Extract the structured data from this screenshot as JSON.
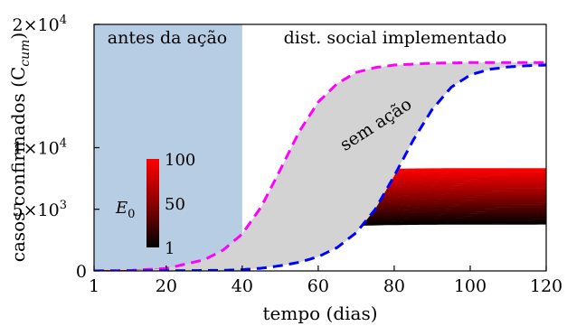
{
  "chart_data": {
    "type": "line",
    "xlabel": "tempo (dias)",
    "ylabel": "casos confirmados (C",
    "ylabel_sub": "cum",
    "ylabel_close": ")",
    "xlim": [
      1,
      120
    ],
    "ylim": [
      0,
      20000
    ],
    "x_ticks": [
      1,
      20,
      40,
      60,
      80,
      100,
      120
    ],
    "x_tick_labels": [
      "1",
      "20",
      "40",
      "60",
      "80",
      "100",
      "120"
    ],
    "x_highlight_tick": "40",
    "x_highlight_color": "#1f5fa8",
    "y_ticks": [
      0,
      5000,
      10000,
      20000
    ],
    "y_tick_labels": [
      {
        "base": "0",
        "exp": ""
      },
      {
        "base": "5×10",
        "exp": "3"
      },
      {
        "base": "1×10",
        "exp": "4"
      },
      {
        "base": "2×10",
        "exp": "4"
      }
    ],
    "shaded_region": {
      "x": [
        1,
        40
      ],
      "color": "#b7cde4"
    },
    "annotations": {
      "before": "antes da ação",
      "after": "dist. social implementado",
      "no_action": "sem ação"
    },
    "colorbar": {
      "label_base": "E",
      "label_sub": "0",
      "min": 1,
      "max": 100,
      "ticks": [
        "100",
        "50",
        "1"
      ],
      "colors": [
        "#000000",
        "#8a0000",
        "#ff0000"
      ]
    },
    "no_action_upper": {
      "color": "#ff00ff",
      "points": [
        [
          1,
          0
        ],
        [
          10,
          30
        ],
        [
          20,
          200
        ],
        [
          30,
          900
        ],
        [
          35,
          1700
        ],
        [
          40,
          3000
        ],
        [
          45,
          5200
        ],
        [
          50,
          8200
        ],
        [
          55,
          11300
        ],
        [
          60,
          13700
        ],
        [
          65,
          15200
        ],
        [
          70,
          16100
        ],
        [
          75,
          16500
        ],
        [
          80,
          16700
        ],
        [
          90,
          16850
        ],
        [
          100,
          16900
        ],
        [
          110,
          16900
        ],
        [
          120,
          16900
        ]
      ]
    },
    "no_action_lower": {
      "color": "#0000ff",
      "points": [
        [
          1,
          0
        ],
        [
          20,
          10
        ],
        [
          35,
          50
        ],
        [
          40,
          100
        ],
        [
          45,
          220
        ],
        [
          50,
          420
        ],
        [
          55,
          700
        ],
        [
          60,
          1150
        ],
        [
          65,
          1900
        ],
        [
          70,
          3100
        ],
        [
          75,
          5000
        ],
        [
          80,
          7700
        ],
        [
          85,
          10600
        ],
        [
          90,
          13100
        ],
        [
          95,
          14900
        ],
        [
          100,
          15900
        ],
        [
          105,
          16350
        ],
        [
          110,
          16550
        ],
        [
          115,
          16650
        ],
        [
          120,
          16700
        ]
      ]
    },
    "series_family": {
      "count": 100,
      "E0_range": [
        1,
        100
      ],
      "base_point": [
        [
          1,
          0
        ],
        [
          10,
          20
        ],
        [
          20,
          150
        ],
        [
          30,
          650
        ],
        [
          35,
          1250
        ],
        [
          40,
          2200
        ]
      ],
      "plateau_range": [
        3800,
        8300
      ],
      "color_scale": [
        "#000000",
        "#8a0000",
        "#ff0000"
      ]
    }
  }
}
